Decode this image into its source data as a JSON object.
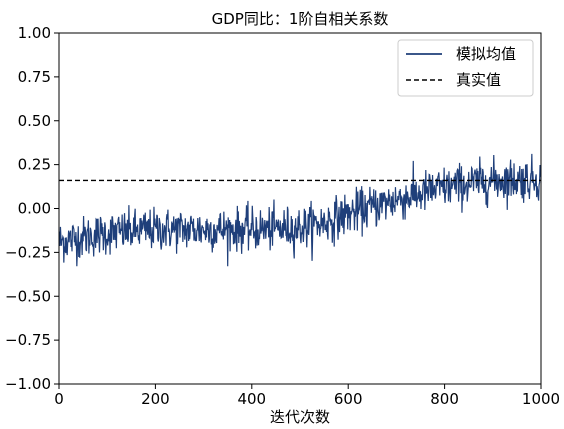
{
  "chart_data": {
    "type": "line",
    "title": "GDP同比：1阶自相关系数",
    "xlabel": "迭代次数",
    "ylabel": "",
    "xlim": [
      0,
      1000
    ],
    "ylim": [
      -1.0,
      1.0
    ],
    "xticks": [
      0,
      200,
      400,
      600,
      800,
      1000
    ],
    "xtick_labels": [
      "0",
      "200",
      "400",
      "600",
      "800",
      "1000"
    ],
    "yticks": [
      -1.0,
      -0.75,
      -0.5,
      -0.25,
      0.0,
      0.25,
      0.5,
      0.75,
      1.0
    ],
    "ytick_labels": [
      "−1.00",
      "−0.75",
      "−0.50",
      "−0.25",
      "0.00",
      "0.25",
      "0.50",
      "0.75",
      "1.00"
    ],
    "grid": false,
    "legend_position": "top-right",
    "series": [
      {
        "name": "模拟均值",
        "style": "solid",
        "color": "#1f3f7a",
        "trend_points": {
          "x": [
            0,
            100,
            200,
            300,
            400,
            500,
            550,
            600,
            700,
            800,
            900,
            1000
          ],
          "y": [
            -0.19,
            -0.14,
            -0.12,
            -0.12,
            -0.12,
            -0.11,
            -0.08,
            -0.03,
            0.05,
            0.12,
            0.16,
            0.17
          ]
        },
        "noise_amplitude": 0.06,
        "n_points": 1000
      },
      {
        "name": "真实值",
        "style": "dashed",
        "color": "#000000",
        "x": [
          0,
          1000
        ],
        "y": [
          0.16,
          0.16
        ]
      }
    ]
  }
}
